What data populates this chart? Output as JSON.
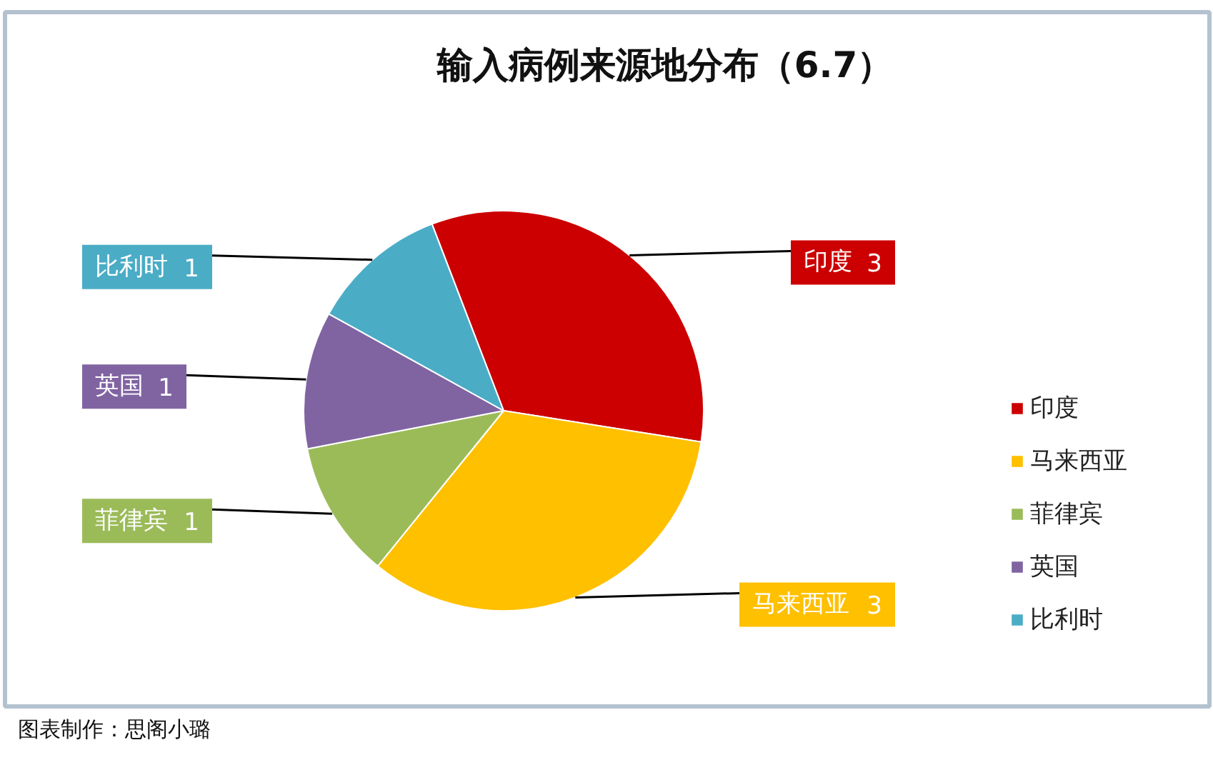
{
  "chart_data": {
    "type": "pie",
    "title": "输入病例来源地分布（6.7）",
    "categories": [
      "印度",
      "马来西亚",
      "菲律宾",
      "英国",
      "比利时"
    ],
    "values": [
      3,
      3,
      1,
      1,
      1
    ],
    "colors": [
      "#cc0000",
      "#ffc000",
      "#9bbb59",
      "#8064a2",
      "#4bacc6"
    ],
    "data_labels": true,
    "legend": "right",
    "annotations": [
      "图表制作：思阁小璐"
    ]
  }
}
